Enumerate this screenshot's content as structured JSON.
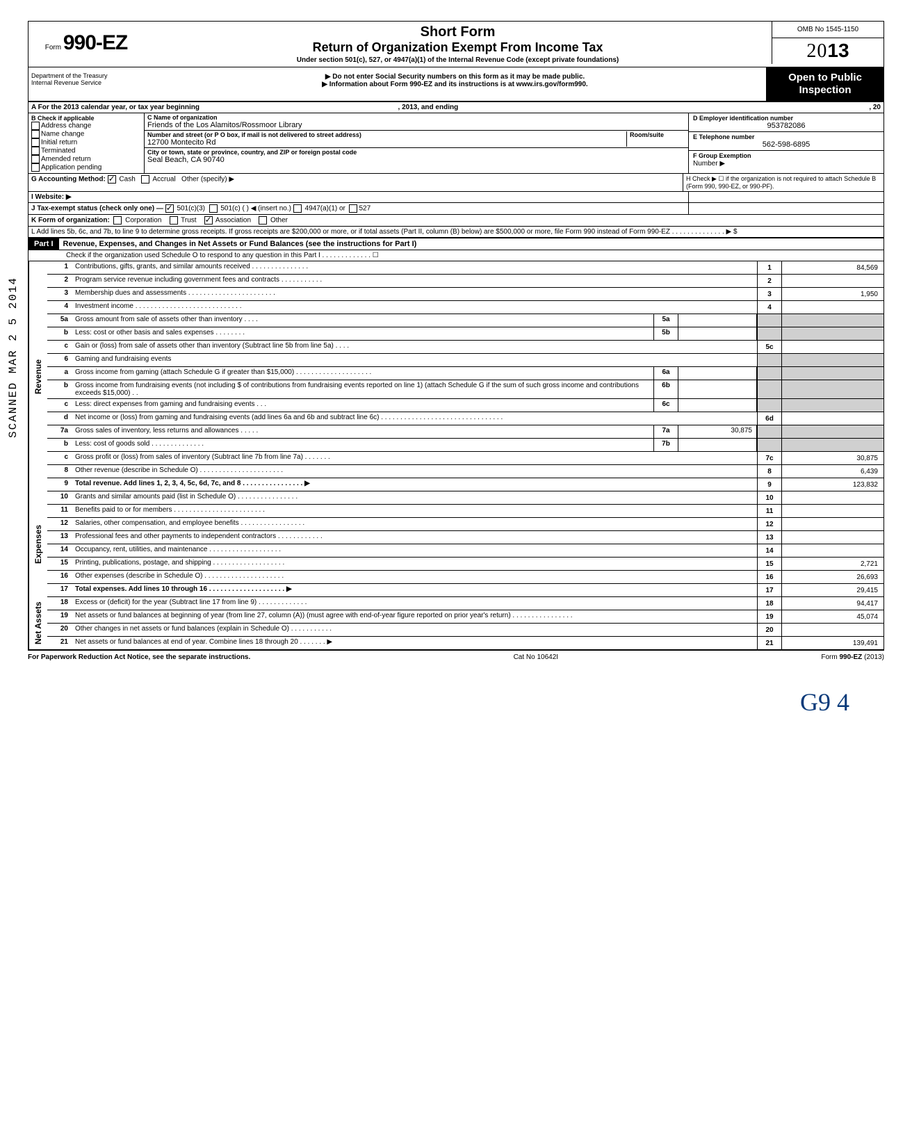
{
  "omb": "OMB No 1545-1150",
  "form_prefix": "Form",
  "form_number": "990-EZ",
  "title": "Short Form",
  "subtitle": "Return of Organization Exempt From Income Tax",
  "under": "Under section 501(c), 527, or 4947(a)(1) of the Internal Revenue Code (except private foundations)",
  "ssn_note": "▶ Do not enter Social Security numbers on this form as it may be made public.",
  "info_note": "▶ Information about Form 990-EZ and its instructions is at www.irs.gov/form990.",
  "year_outline": "20",
  "year_bold": "13",
  "dept": "Department of the Treasury\nInternal Revenue Service",
  "open_public": "Open to Public Inspection",
  "lineA": "A  For the 2013 calendar year, or tax year beginning",
  "lineA_mid": ", 2013, and ending",
  "lineA_end": ", 20",
  "checkB_title": "B  Check if applicable",
  "check_items": [
    "Address change",
    "Name change",
    "Initial return",
    "Terminated",
    "Amended return",
    "Application pending"
  ],
  "C_label": "C  Name of organization",
  "C_val": "Friends of the Los Alamitos/Rossmoor Library",
  "addr_label": "Number and street (or P O box, if mail is not delivered to street address)",
  "room_label": "Room/suite",
  "addr_val": "12700 Montecito Rd",
  "city_label": "City or town, state or province, country, and ZIP or foreign postal code",
  "city_val": "Seal Beach, CA 90740",
  "D_label": "D Employer identification number",
  "D_val": "953782086",
  "E_label": "E  Telephone number",
  "E_val": "562-598-6895",
  "F_label": "F  Group Exemption",
  "F_sub": "Number  ▶",
  "G_label": "G  Accounting Method:",
  "G_cash": "Cash",
  "G_accrual": "Accrual",
  "G_other": "Other (specify) ▶",
  "H_label": "H  Check ▶ ☐ if the organization is not required to attach Schedule B (Form 990, 990-EZ, or 990-PF).",
  "I_label": "I   Website: ▶",
  "J_label": "J  Tax-exempt status (check only one) —",
  "J_501c3": "501(c)(3)",
  "J_501c": "501(c) (",
  "J_insert": ") ◀ (insert no.)",
  "J_4947": "4947(a)(1) or",
  "J_527": "527",
  "K_label": "K  Form of organization:",
  "K_corp": "Corporation",
  "K_trust": "Trust",
  "K_assoc": "Association",
  "K_other": "Other",
  "L_text": "L  Add lines 5b, 6c, and 7b, to line 9 to determine gross receipts. If gross receipts are $200,000 or more, or if total assets (Part II, column (B) below) are $500,000 or more, file Form 990 instead of Form 990-EZ .  .  .  .  .  .  .  .  .  .  .  .  .  .  ▶   $",
  "part1_label": "Part I",
  "part1_title": "Revenue, Expenses, and Changes in Net Assets or Fund Balances (see the instructions for Part I)",
  "part1_check": "Check if the organization used Schedule O to respond to any question in this Part I .  .  .  .  .  .  .  .  .  .  .  .  .  ☐",
  "sections": {
    "revenue": "Revenue",
    "expenses": "Expenses",
    "netassets": "Net Assets"
  },
  "lines": {
    "l1": {
      "n": "1",
      "t": "Contributions, gifts, grants, and similar amounts received .  .  .  .  .  .  .  .  .  .  .  .  .  .  .",
      "rn": "1",
      "v": "84,569"
    },
    "l2": {
      "n": "2",
      "t": "Program service revenue including government fees and contracts   .  .  .  .  .  .  .  .  .  .  .",
      "rn": "2",
      "v": ""
    },
    "l3": {
      "n": "3",
      "t": "Membership dues and assessments .  .  .  .  .  .  .  .  .  .  .  .  .  .  .  .  .  .  .  .  .  .  .",
      "rn": "3",
      "v": "1,950"
    },
    "l4": {
      "n": "4",
      "t": "Investment income   .  .  .  .  .  .  .  .  .  .  .  .  .  .  .  .  .  .  .  .  .  .  .  .  .  .  .  .",
      "rn": "4",
      "v": ""
    },
    "l5a": {
      "n": "5a",
      "t": "Gross amount from sale of assets other than inventory    .  .  .  .",
      "sn": "5a",
      "sv": ""
    },
    "l5b": {
      "n": "b",
      "t": "Less: cost or other basis and sales expenses .  .  .  .  .  .  .  .",
      "sn": "5b",
      "sv": ""
    },
    "l5c": {
      "n": "c",
      "t": "Gain or (loss) from sale of assets other than inventory (Subtract line 5b from line 5a) .  .  .  .",
      "rn": "5c",
      "v": ""
    },
    "l6": {
      "n": "6",
      "t": "Gaming and fundraising events"
    },
    "l6a": {
      "n": "a",
      "t": "Gross income from gaming (attach Schedule G if greater than $15,000) .  .  .  .  .  .  .  .  .  .  .  .  .  .  .  .  .  .  .  .",
      "sn": "6a",
      "sv": ""
    },
    "l6b": {
      "n": "b",
      "t": "Gross income from fundraising events (not including $            of contributions from fundraising events reported on line 1) (attach Schedule G if the sum of such gross income and contributions exceeds $15,000)  .  .",
      "sn": "6b",
      "sv": ""
    },
    "l6c": {
      "n": "c",
      "t": "Less: direct expenses from gaming and fundraising events .  .  .",
      "sn": "6c",
      "sv": ""
    },
    "l6d": {
      "n": "d",
      "t": "Net income or (loss) from gaming and fundraising events (add lines 6a and 6b and subtract line 6c)   .  .  .  .  .  .  .  .  .  .  .  .  .  .  .  .  .  .  .  .  .  .  .  .  .  .  .  .  .  .  .  .",
      "rn": "6d",
      "v": ""
    },
    "l7a": {
      "n": "7a",
      "t": "Gross sales of inventory, less returns and allowances  .  .  .  .  .",
      "sn": "7a",
      "sv": "30,875"
    },
    "l7b": {
      "n": "b",
      "t": "Less: cost of goods sold     .  .  .  .  .  .  .  .  .  .  .  .  .  .",
      "sn": "7b",
      "sv": ""
    },
    "l7c": {
      "n": "c",
      "t": "Gross profit or (loss) from sales of inventory (Subtract line 7b from line 7a)   .  .  .  .  .  .  .",
      "rn": "7c",
      "v": "30,875"
    },
    "l8": {
      "n": "8",
      "t": "Other revenue (describe in Schedule O) .  .  .  .  .  .  .  .  .  .  .  .  .  .  .  .  .  .  .  .  .  .",
      "rn": "8",
      "v": "6,439"
    },
    "l9": {
      "n": "9",
      "t": "Total revenue. Add lines 1, 2, 3, 4, 5c, 6d, 7c, and 8   .  .  .  .  .  .  .  .  .  .  .  .  .  .  .  .  ▶",
      "rn": "9",
      "v": "123,832",
      "bold": true
    },
    "l10": {
      "n": "10",
      "t": "Grants and similar amounts paid (list in Schedule O)    .  .  .  .  .  .  .  .  .  .  .  .  .  .  .  .",
      "rn": "10",
      "v": ""
    },
    "l11": {
      "n": "11",
      "t": "Benefits paid to or for members  .  .  .  .  .  .  .  .  .  .  .  .  .  .  .  .  .  .  .  .  .  .  .  .",
      "rn": "11",
      "v": ""
    },
    "l12": {
      "n": "12",
      "t": "Salaries, other compensation, and employee benefits .  .  .  .  .  .  .  .  .  .  .  .  .  .  .  .  .",
      "rn": "12",
      "v": ""
    },
    "l13": {
      "n": "13",
      "t": "Professional fees and other payments to independent contractors .  .  .  .  .  .  .  .  .  .  .  .",
      "rn": "13",
      "v": ""
    },
    "l14": {
      "n": "14",
      "t": "Occupancy, rent, utilities, and maintenance    .  .  .  .  .  .  .  .  .  .  .  .  .  .  .  .  .  .  .",
      "rn": "14",
      "v": ""
    },
    "l15": {
      "n": "15",
      "t": "Printing, publications, postage, and shipping .  .  .  .  .  .  .  .  .  .  .  .  .  .  .  .  .  .  .",
      "rn": "15",
      "v": "2,721"
    },
    "l16": {
      "n": "16",
      "t": "Other expenses (describe in Schedule O)  .  .  .  .  .  .  .  .  .  .  .  .  .  .  .  .  .  .  .  .  .",
      "rn": "16",
      "v": "26,693"
    },
    "l17": {
      "n": "17",
      "t": "Total expenses. Add lines 10 through 16  .  .  .  .  .  .  .  .  .  .  .  .  .  .  .  .  .  .  .  .  ▶",
      "rn": "17",
      "v": "29,415",
      "bold": true
    },
    "l18": {
      "n": "18",
      "t": "Excess or (deficit) for the year (Subtract line 17 from line 9)    .  .  .  .  .  .  .  .  .  .  .  .  .",
      "rn": "18",
      "v": "94,417"
    },
    "l19": {
      "n": "19",
      "t": "Net assets or fund balances at beginning of year (from line 27, column (A)) (must agree with end-of-year figure reported on prior year's return)    .  .  .  .  .  .  .  .  .  .  .  .  .  .  .  .",
      "rn": "19",
      "v": "45,074"
    },
    "l20": {
      "n": "20",
      "t": "Other changes in net assets or fund balances (explain in Schedule O) .  .  .  .  .  .  .  .  .  .  .",
      "rn": "20",
      "v": ""
    },
    "l21": {
      "n": "21",
      "t": "Net assets or fund balances at end of year. Combine lines 18 through 20   .  .  .  .  .  .  .  ▶",
      "rn": "21",
      "v": "139,491"
    }
  },
  "footer_left": "For Paperwork Reduction Act Notice, see the separate instructions.",
  "footer_mid": "Cat No 10642I",
  "footer_right": "Form 990-EZ (2013)",
  "handwrite": "G9 4",
  "scanned": "SCANNED  MAR 2 5 2014"
}
